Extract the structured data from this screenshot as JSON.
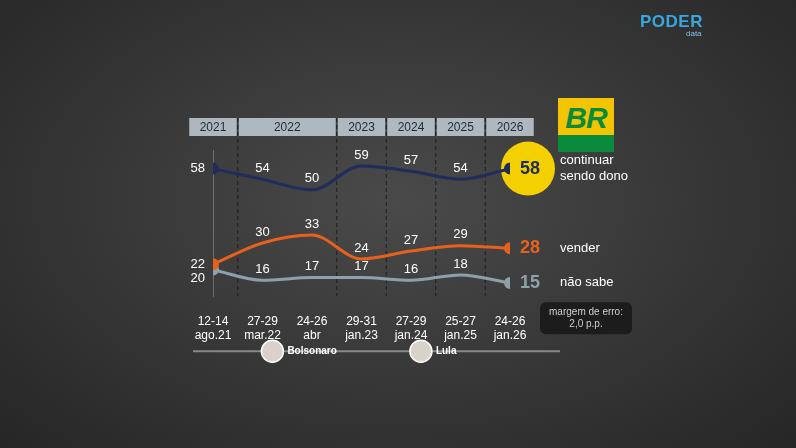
{
  "chart_data": {
    "type": "line",
    "categories": [
      "12-14 ago.21",
      "27-29 mar.22",
      "24-26 abr",
      "29-31 jan.23",
      "27-29 jan.24",
      "25-27 jan.25",
      "24-26 jan.26"
    ],
    "period_labels": [
      "2021",
      "2022",
      "2022",
      "2023",
      "2024",
      "2025",
      "2026"
    ],
    "series": [
      {
        "name": "continuar sendo dono",
        "color": "#1e2d5c",
        "values": [
          58,
          54,
          50,
          59,
          57,
          54,
          58
        ]
      },
      {
        "name": "vender",
        "color": "#e8611c",
        "values": [
          22,
          30,
          33,
          24,
          27,
          29,
          28
        ]
      },
      {
        "name": "não sabe",
        "color": "#8ea1ab",
        "values": [
          20,
          16,
          17,
          17,
          16,
          18,
          15
        ]
      }
    ],
    "ylim": [
      10,
      65
    ],
    "yticks": [],
    "grid": false,
    "data_labels": true,
    "tick_labels": "x",
    "annotations": [
      "margem de erro: 2,0 p.p."
    ],
    "presidents": [
      "Bolsonaro",
      "Lula"
    ],
    "logos": {
      "company": "BR",
      "publisher": [
        "PODER",
        "data"
      ]
    }
  }
}
